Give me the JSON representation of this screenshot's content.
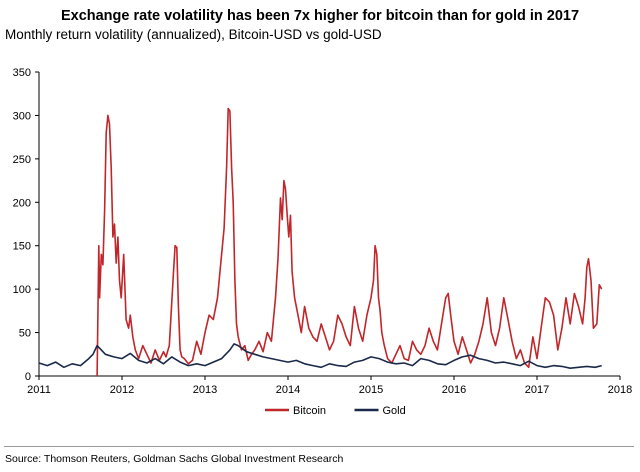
{
  "header": {
    "title": "Exchange rate volatility has been 7x higher for bitcoin than for gold in 2017",
    "subtitle": "Monthly return volatility (annualized), Bitcoin-USD vs gold-USD"
  },
  "footer": {
    "source": "Source: Thomson Reuters, Goldman Sachs Global Investment Research"
  },
  "chart_data": {
    "type": "line",
    "title": "Exchange rate volatility has been 7x higher for bitcoin than for gold in 2017",
    "subtitle": "Monthly return volatility (annualized), Bitcoin-USD vs gold-USD",
    "xlabel": "",
    "ylabel": "",
    "xlim": [
      2011,
      2018
    ],
    "ylim": [
      0,
      350
    ],
    "x_ticks": [
      "2011",
      "2012",
      "2013",
      "2014",
      "2015",
      "2016",
      "2017",
      "2018"
    ],
    "y_ticks": [
      "0",
      "50",
      "100",
      "150",
      "200",
      "250",
      "300",
      "350"
    ],
    "grid": false,
    "legend_position": "bottom-center",
    "series": [
      {
        "name": "Bitcoin",
        "color": "#c0262a",
        "x": [
          2011.7,
          2011.72,
          2011.73,
          2011.75,
          2011.77,
          2011.79,
          2011.81,
          2011.83,
          2011.85,
          2011.87,
          2011.89,
          2011.91,
          2011.93,
          2011.95,
          2011.97,
          2011.99,
          2012.02,
          2012.05,
          2012.08,
          2012.1,
          2012.13,
          2012.16,
          2012.2,
          2012.25,
          2012.3,
          2012.35,
          2012.4,
          2012.45,
          2012.5,
          2012.53,
          2012.57,
          2012.62,
          2012.64,
          2012.66,
          2012.68,
          2012.7,
          2012.72,
          2012.75,
          2012.8,
          2012.85,
          2012.9,
          2012.95,
          2013.0,
          2013.05,
          2013.1,
          2013.15,
          2013.2,
          2013.23,
          2013.26,
          2013.28,
          2013.3,
          2013.32,
          2013.34,
          2013.36,
          2013.38,
          2013.4,
          2013.44,
          2013.48,
          2013.52,
          2013.56,
          2013.6,
          2013.65,
          2013.7,
          2013.75,
          2013.8,
          2013.85,
          2013.88,
          2013.91,
          2013.93,
          2013.95,
          2013.97,
          2013.99,
          2014.01,
          2014.03,
          2014.05,
          2014.08,
          2014.12,
          2014.16,
          2014.2,
          2014.25,
          2014.3,
          2014.35,
          2014.4,
          2014.45,
          2014.5,
          2014.55,
          2014.6,
          2014.65,
          2014.7,
          2014.75,
          2014.8,
          2014.85,
          2014.9,
          2014.95,
          2015.0,
          2015.03,
          2015.05,
          2015.07,
          2015.09,
          2015.11,
          2015.13,
          2015.16,
          2015.2,
          2015.25,
          2015.3,
          2015.35,
          2015.4,
          2015.45,
          2015.5,
          2015.55,
          2015.6,
          2015.65,
          2015.7,
          2015.75,
          2015.8,
          2015.85,
          2015.9,
          2015.93,
          2015.96,
          2016.0,
          2016.05,
          2016.1,
          2016.15,
          2016.2,
          2016.25,
          2016.3,
          2016.35,
          2016.4,
          2016.45,
          2016.5,
          2016.55,
          2016.6,
          2016.65,
          2016.7,
          2016.75,
          2016.8,
          2016.85,
          2016.9,
          2016.95,
          2017.0,
          2017.05,
          2017.1,
          2017.15,
          2017.2,
          2017.25,
          2017.3,
          2017.35,
          2017.4,
          2017.45,
          2017.5,
          2017.55,
          2017.58,
          2017.6,
          2017.62,
          2017.65,
          2017.68,
          2017.72,
          2017.75,
          2017.78
        ],
        "values": [
          0,
          150,
          90,
          140,
          128,
          190,
          280,
          300,
          290,
          240,
          160,
          175,
          130,
          160,
          110,
          90,
          140,
          65,
          55,
          70,
          45,
          30,
          20,
          35,
          25,
          15,
          30,
          18,
          28,
          22,
          35,
          120,
          150,
          148,
          80,
          30,
          22,
          20,
          14,
          18,
          40,
          25,
          50,
          70,
          65,
          90,
          140,
          170,
          240,
          308,
          305,
          240,
          200,
          110,
          60,
          45,
          30,
          35,
          18,
          25,
          30,
          40,
          28,
          50,
          40,
          90,
          135,
          205,
          180,
          225,
          215,
          185,
          160,
          185,
          120,
          90,
          70,
          50,
          80,
          55,
          45,
          40,
          60,
          45,
          30,
          40,
          70,
          60,
          45,
          35,
          80,
          55,
          40,
          70,
          90,
          110,
          150,
          140,
          90,
          75,
          50,
          35,
          20,
          15,
          25,
          35,
          20,
          18,
          40,
          30,
          25,
          35,
          55,
          40,
          30,
          60,
          90,
          95,
          70,
          40,
          25,
          45,
          30,
          15,
          25,
          40,
          60,
          90,
          50,
          35,
          55,
          90,
          65,
          40,
          20,
          30,
          15,
          10,
          45,
          20,
          55,
          90,
          85,
          70,
          30,
          55,
          90,
          60,
          95,
          80,
          60,
          90,
          125,
          135,
          110,
          55,
          60,
          105,
          100
        ],
        "note": "values estimated from the plotted line"
      },
      {
        "name": "Gold",
        "color": "#1b2a4a",
        "x": [
          2011.0,
          2011.1,
          2011.2,
          2011.3,
          2011.4,
          2011.5,
          2011.6,
          2011.65,
          2011.7,
          2011.75,
          2011.8,
          2011.9,
          2012.0,
          2012.1,
          2012.2,
          2012.3,
          2012.4,
          2012.5,
          2012.6,
          2012.7,
          2012.8,
          2012.9,
          2013.0,
          2013.1,
          2013.2,
          2013.3,
          2013.35,
          2013.4,
          2013.5,
          2013.6,
          2013.7,
          2013.8,
          2013.9,
          2014.0,
          2014.1,
          2014.2,
          2014.3,
          2014.4,
          2014.5,
          2014.6,
          2014.7,
          2014.8,
          2014.9,
          2015.0,
          2015.1,
          2015.2,
          2015.3,
          2015.4,
          2015.5,
          2015.6,
          2015.7,
          2015.8,
          2015.9,
          2016.0,
          2016.1,
          2016.2,
          2016.3,
          2016.4,
          2016.5,
          2016.6,
          2016.7,
          2016.8,
          2016.9,
          2017.0,
          2017.1,
          2017.2,
          2017.3,
          2017.4,
          2017.5,
          2017.6,
          2017.7,
          2017.78
        ],
        "values": [
          15,
          12,
          16,
          10,
          14,
          12,
          20,
          25,
          35,
          30,
          25,
          22,
          20,
          26,
          18,
          15,
          20,
          14,
          22,
          16,
          12,
          14,
          12,
          16,
          20,
          30,
          37,
          35,
          28,
          25,
          22,
          20,
          18,
          16,
          18,
          14,
          12,
          10,
          14,
          12,
          11,
          16,
          18,
          22,
          20,
          16,
          14,
          15,
          12,
          20,
          18,
          14,
          13,
          18,
          22,
          24,
          20,
          18,
          15,
          16,
          14,
          12,
          17,
          12,
          10,
          12,
          11,
          9,
          10,
          11,
          10,
          12
        ],
        "note": "values estimated from the plotted line"
      }
    ]
  }
}
